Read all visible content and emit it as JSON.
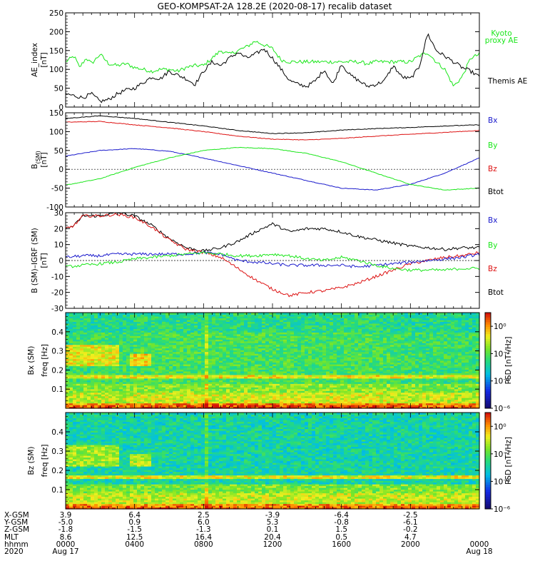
{
  "title": "GEO-KOMPSAT-2A 128.2E (2020-08-17) recalib dataset",
  "colors": {
    "black": "#000000",
    "green": "#19e619",
    "blue": "#1a1acc",
    "red": "#dd1111"
  },
  "chart_data": [
    {
      "type": "line",
      "ylabel_1": "AE_index",
      "ylabel_2": "[nT]",
      "ylim": [
        0,
        250
      ],
      "yticks": [
        "0",
        "50",
        "100",
        "150",
        "200",
        "250"
      ],
      "x_range_hours": [
        0,
        24
      ],
      "legend": [
        {
          "label": "Kyoto",
          "color": "#19e619"
        },
        {
          "label": "proxy AE",
          "color": "#19e619"
        },
        {
          "label": "Themis AE",
          "color": "#000000"
        }
      ],
      "series": [
        {
          "name": "Kyoto proxy AE",
          "color": "#19e619",
          "x": [
            0,
            0.5,
            0.8,
            1.2,
            1.5,
            2,
            2.5,
            3,
            3.5,
            4,
            4.5,
            5,
            5.5,
            6,
            6.5,
            7,
            7.5,
            8,
            8.5,
            9,
            9.5,
            10,
            10.5,
            11,
            11.5,
            12,
            12.5,
            13,
            13.5,
            14,
            14.5,
            15,
            15.5,
            16,
            16.5,
            17,
            17.5,
            18,
            18.5,
            19,
            19.5,
            20,
            20.5,
            21,
            21.5,
            22,
            22.5,
            23,
            23.5,
            24
          ],
          "y": [
            120,
            135,
            105,
            130,
            115,
            140,
            115,
            110,
            115,
            105,
            100,
            95,
            100,
            100,
            95,
            105,
            110,
            110,
            130,
            150,
            140,
            150,
            160,
            175,
            165,
            155,
            125,
            120,
            120,
            120,
            120,
            120,
            120,
            120,
            120,
            120,
            115,
            120,
            120,
            120,
            120,
            120,
            135,
            145,
            120,
            100,
            55,
            80,
            130,
            140
          ]
        },
        {
          "name": "Themis AE",
          "color": "#000000",
          "x": [
            0,
            0.5,
            1,
            1.5,
            2,
            2.5,
            3,
            3.5,
            4,
            4.5,
            5,
            5.5,
            6,
            6.5,
            7,
            7.5,
            8,
            8.5,
            9,
            9.5,
            10,
            10.5,
            11,
            11.5,
            12,
            12.5,
            13,
            13.5,
            14,
            14.5,
            15,
            15.5,
            16,
            16.5,
            17,
            17.5,
            18,
            18.5,
            19,
            19.5,
            20,
            20.5,
            21,
            21.5,
            22,
            22.5,
            23,
            23.5,
            24
          ],
          "y": [
            35,
            30,
            25,
            35,
            15,
            20,
            35,
            45,
            50,
            65,
            80,
            75,
            95,
            85,
            75,
            60,
            95,
            120,
            110,
            130,
            145,
            130,
            140,
            155,
            130,
            100,
            70,
            60,
            55,
            70,
            100,
            60,
            115,
            85,
            70,
            55,
            60,
            70,
            110,
            80,
            75,
            105,
            195,
            150,
            135,
            120,
            105,
            95,
            80
          ]
        }
      ]
    },
    {
      "type": "line",
      "ylabel_1": "B",
      "ylabel_sub": "(SM)",
      "ylabel_2": "[nT]",
      "ylim": [
        -100,
        150
      ],
      "yticks": [
        "-100",
        "-50",
        "0",
        "50",
        "100",
        "150"
      ],
      "x_range_hours": [
        0,
        24
      ],
      "legend": [
        {
          "label": "Bx",
          "color": "#1a1acc"
        },
        {
          "label": "By",
          "color": "#19e619"
        },
        {
          "label": "Bz",
          "color": "#dd1111"
        },
        {
          "label": "Btot",
          "color": "#000000"
        }
      ],
      "series": [
        {
          "name": "Bx",
          "color": "#1a1acc",
          "x": [
            0,
            2,
            4,
            6,
            8,
            10,
            12,
            14,
            16,
            18,
            20,
            22,
            24
          ],
          "y": [
            35,
            50,
            55,
            48,
            30,
            10,
            -10,
            -30,
            -50,
            -55,
            -40,
            -10,
            30
          ]
        },
        {
          "name": "By",
          "color": "#19e619",
          "x": [
            0,
            2,
            4,
            6,
            8,
            10,
            12,
            14,
            16,
            18,
            20,
            22,
            24
          ],
          "y": [
            -42,
            -25,
            5,
            30,
            50,
            58,
            55,
            42,
            20,
            -10,
            -40,
            -55,
            -50
          ]
        },
        {
          "name": "Bz",
          "color": "#dd1111",
          "x": [
            0,
            2,
            4,
            6,
            8,
            10,
            12,
            14,
            16,
            18,
            20,
            22,
            24
          ],
          "y": [
            125,
            127,
            118,
            110,
            100,
            88,
            80,
            78,
            82,
            88,
            93,
            98,
            103
          ]
        },
        {
          "name": "Btot",
          "color": "#000000",
          "x": [
            0,
            2,
            4,
            6,
            8,
            10,
            12,
            14,
            16,
            18,
            20,
            22,
            24
          ],
          "y": [
            135,
            142,
            135,
            125,
            115,
            103,
            95,
            97,
            104,
            108,
            111,
            115,
            118
          ]
        }
      ]
    },
    {
      "type": "line",
      "ylabel_1": "B (SM)–IGRF (SM)",
      "ylabel_2": "[nT]",
      "ylim": [
        -30,
        30
      ],
      "yticks": [
        "-30",
        "-20",
        "-10",
        "0",
        "10",
        "20",
        "30"
      ],
      "x_range_hours": [
        0,
        24
      ],
      "legend": [
        {
          "label": "Bx",
          "color": "#1a1acc"
        },
        {
          "label": "By",
          "color": "#19e619"
        },
        {
          "label": "Bz",
          "color": "#dd1111"
        },
        {
          "label": "Btot",
          "color": "#000000"
        }
      ],
      "series": [
        {
          "name": "Btot",
          "color": "#000000",
          "x": [
            0,
            0.5,
            1,
            2,
            3,
            4,
            5,
            6,
            7,
            8,
            9,
            10,
            11,
            12,
            13,
            14,
            15,
            16,
            17,
            18,
            19,
            20,
            21,
            22,
            23,
            24
          ],
          "y": [
            20,
            22,
            28,
            28,
            30,
            28,
            22,
            14,
            8,
            6,
            8,
            12,
            18,
            23,
            18,
            20,
            20,
            18,
            15,
            13,
            11,
            9,
            8,
            7,
            8,
            8
          ]
        },
        {
          "name": "Bz",
          "color": "#dd1111",
          "x": [
            0,
            0.5,
            1,
            2,
            3,
            4,
            5,
            6,
            7,
            8,
            9,
            10,
            11,
            12,
            13,
            14,
            15,
            16,
            17,
            18,
            19,
            20,
            21,
            22,
            23,
            24
          ],
          "y": [
            20,
            22,
            28,
            28,
            29,
            27,
            21,
            13,
            7,
            5,
            2,
            -5,
            -12,
            -18,
            -22,
            -20,
            -19,
            -17,
            -14,
            -10,
            -6,
            -2,
            0,
            2,
            3,
            5
          ]
        },
        {
          "name": "Bx",
          "color": "#1a1acc",
          "x": [
            0,
            1,
            2,
            3,
            4,
            5,
            6,
            7,
            8,
            9,
            10,
            11,
            12,
            13,
            14,
            15,
            16,
            17,
            18,
            19,
            20,
            21,
            22,
            23,
            24
          ],
          "y": [
            2,
            3,
            3,
            4,
            4,
            4,
            4,
            4,
            5,
            4,
            0,
            -1,
            -2,
            -3,
            -3,
            -3,
            -3,
            -4,
            -3,
            -2,
            -1,
            0,
            1,
            2,
            4
          ]
        },
        {
          "name": "By",
          "color": "#19e619",
          "x": [
            0,
            1,
            2,
            3,
            4,
            5,
            6,
            7,
            8,
            9,
            10,
            11,
            12,
            13,
            14,
            15,
            16,
            17,
            18,
            19,
            20,
            21,
            22,
            23,
            24
          ],
          "y": [
            -4,
            -3,
            -2,
            -1,
            1,
            2,
            3,
            4,
            5,
            4,
            3,
            3,
            4,
            3,
            1,
            0,
            2,
            0,
            -3,
            -5,
            -6,
            -6,
            -6,
            -5,
            -5
          ]
        }
      ]
    },
    {
      "type": "heatmap",
      "ylabel_1": "Bx (SM)",
      "ylabel_2": "freq [Hz]",
      "ylim": [
        0,
        0.5
      ],
      "yticks": [
        "0.1",
        "0.2",
        "0.3",
        "0.4"
      ],
      "x_range_hours": [
        0,
        24
      ],
      "colorbar": {
        "label": "PSD [nT²/Hz]",
        "ticks": [
          "10⁰",
          "10⁻²",
          "10⁻⁴",
          "10⁻⁶"
        ],
        "log_range": [
          -6,
          1
        ]
      }
    },
    {
      "type": "heatmap",
      "ylabel_1": "Bz (SM)",
      "ylabel_2": "freq [Hz]",
      "ylim": [
        0,
        0.5
      ],
      "yticks": [
        "0.1",
        "0.2",
        "0.3",
        "0.4"
      ],
      "x_range_hours": [
        0,
        24
      ],
      "colorbar": {
        "label": "PSD [nT²/Hz]",
        "ticks": [
          "10⁰",
          "10⁻²",
          "10⁻⁴",
          "10⁻⁶"
        ],
        "log_range": [
          -6,
          1
        ]
      }
    }
  ],
  "ephemeris": {
    "labels": [
      "X-GSM",
      "Y-GSM",
      "Z-GSM",
      "MLT",
      "hhmm",
      "2020"
    ],
    "x_hours": [
      0,
      4,
      8,
      12,
      16,
      20,
      24
    ],
    "columns": [
      [
        "3.9",
        "6.4",
        "2.5",
        "-3.9",
        "-6.4",
        "-2.5",
        ""
      ],
      [
        "-5.0",
        "0.9",
        "6.0",
        "5.3",
        "-0.8",
        "-6.1",
        ""
      ],
      [
        "-1.8",
        "-1.5",
        "-1.3",
        "0.1",
        "1.5",
        "-0.2",
        ""
      ],
      [
        "8.6",
        "12.5",
        "16.4",
        "20.4",
        "0.5",
        "4.7",
        ""
      ],
      [
        "0000",
        "0400",
        "0800",
        "1200",
        "1600",
        "2000",
        "0000"
      ],
      [
        "Aug 17",
        "",
        "",
        "",
        "",
        "",
        "Aug 18"
      ]
    ]
  }
}
